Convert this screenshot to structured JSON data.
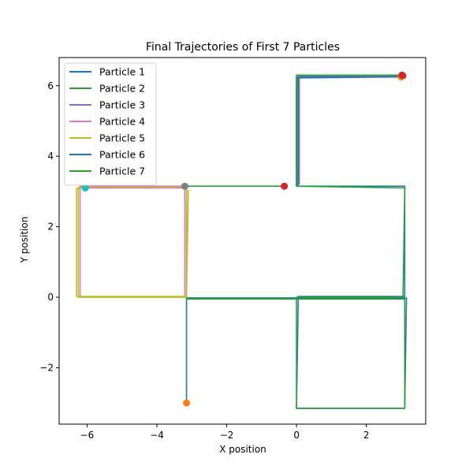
{
  "chart_data": {
    "type": "line",
    "title": "Final Trajectories of First 7 Particles",
    "xlabel": "X position",
    "ylabel": "Y position",
    "xlim": [
      -6.8,
      3.7
    ],
    "ylim": [
      -3.6,
      6.8
    ],
    "xticks": [
      -6,
      -4,
      -2,
      0,
      2
    ],
    "yticks": [
      -2,
      0,
      2,
      4,
      6
    ],
    "xtick_labels": [
      "−6",
      "−4",
      "−2",
      "0",
      "2"
    ],
    "ytick_labels": [
      "−2",
      "0",
      "2",
      "4",
      "6"
    ],
    "grid": false,
    "legend_position": "top-left",
    "series": [
      {
        "name": "Particle 1",
        "color": "#1f77b4",
        "points": [
          [
            3.0,
            6.25
          ],
          [
            0.05,
            6.25
          ],
          [
            0.05,
            3.15
          ],
          [
            3.1,
            3.15
          ],
          [
            3.1,
            0.02
          ],
          [
            0.05,
            0.02
          ],
          [
            0.0,
            -3.15
          ],
          [
            3.1,
            -3.15
          ],
          [
            3.15,
            -0.02
          ],
          [
            -3.15,
            -0.02
          ],
          [
            -3.15,
            -3.0
          ]
        ],
        "end_marker": {
          "x": -3.15,
          "y": -3.0,
          "color": "#ff7f0e"
        }
      },
      {
        "name": "Particle 2",
        "color": "#2ca02c",
        "points": [
          [
            3.0,
            6.3
          ],
          [
            0.0,
            6.3
          ],
          [
            0.0,
            3.15
          ],
          [
            3.1,
            3.1
          ],
          [
            3.05,
            0.0
          ],
          [
            0.0,
            0.0
          ],
          [
            0.0,
            -3.15
          ],
          [
            3.1,
            -3.15
          ],
          [
            3.1,
            -0.05
          ],
          [
            -3.15,
            -0.05
          ],
          [
            -3.15,
            3.15
          ],
          [
            -0.35,
            3.15
          ]
        ],
        "end_marker": {
          "x": -0.35,
          "y": 3.15,
          "color": "#d62728"
        }
      },
      {
        "name": "Particle 3",
        "color": "#9467bd",
        "points": [
          [
            3.05,
            6.28
          ],
          [
            0.08,
            6.28
          ],
          [
            0.08,
            3.2
          ]
        ],
        "end_marker": {
          "x": 3.05,
          "y": 6.28,
          "color": "#8c564b"
        }
      },
      {
        "name": "Particle 4",
        "color": "#e377c2",
        "points": [
          [
            -3.2,
            3.15
          ],
          [
            -6.2,
            3.15
          ],
          [
            -6.2,
            0.0
          ],
          [
            -3.2,
            0.0
          ],
          [
            -3.2,
            3.1
          ],
          [
            -6.0,
            3.1
          ]
        ],
        "end_marker": {
          "x": -3.2,
          "y": 3.15,
          "color": "#7f7f7f"
        }
      },
      {
        "name": "Particle 5",
        "color": "#bcbd22",
        "points": [
          [
            -3.1,
            3.05
          ],
          [
            -3.15,
            0.0
          ],
          [
            -6.25,
            0.0
          ],
          [
            -6.25,
            3.12
          ],
          [
            -3.15,
            3.12
          ],
          [
            -3.15,
            0.02
          ],
          [
            -6.3,
            0.02
          ],
          [
            -6.3,
            3.08
          ],
          [
            -6.05,
            3.1
          ]
        ],
        "end_marker": {
          "x": -6.05,
          "y": 3.1,
          "color": "#17becf"
        }
      },
      {
        "name": "Particle 6",
        "color": "#1f77b4",
        "points": [
          [
            3.0,
            6.25
          ],
          [
            0.0,
            6.22
          ],
          [
            0.0,
            3.15
          ]
        ],
        "end_marker": {
          "x": 3.0,
          "y": 6.25,
          "color": "#ff7f0e"
        }
      },
      {
        "name": "Particle 7",
        "color": "#2ca02c",
        "points": [
          [
            3.02,
            6.3
          ],
          [
            0.02,
            6.3
          ],
          [
            0.02,
            3.18
          ]
        ],
        "end_marker": {
          "x": 3.02,
          "y": 6.3,
          "color": "#d62728"
        }
      }
    ]
  }
}
